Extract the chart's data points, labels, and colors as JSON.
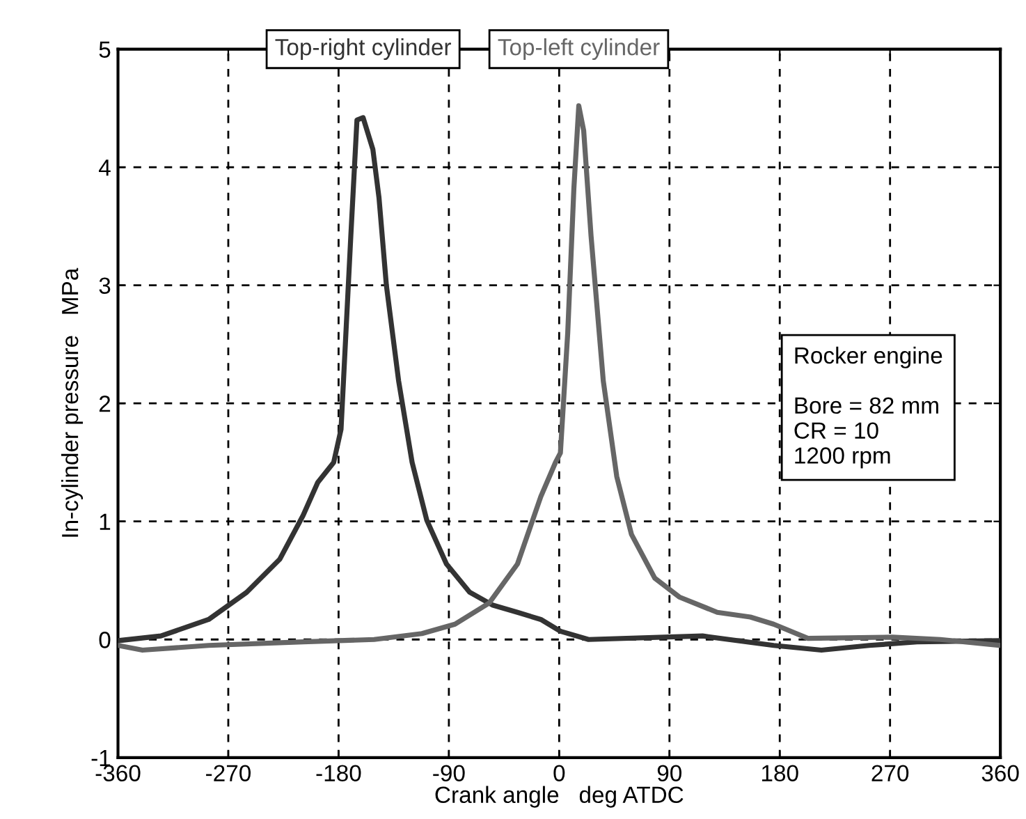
{
  "chart_data": {
    "type": "line",
    "xlabel": "Crank angle   deg ATDC",
    "ylabel": "In-cylinder pressure   MPa",
    "xlim": [
      -360,
      360
    ],
    "xticks": [
      -360,
      -270,
      -180,
      -90,
      0,
      90,
      180,
      270,
      360
    ],
    "ylim": [
      -1,
      5
    ],
    "yticks": [
      -1,
      0,
      1,
      2,
      3,
      4,
      5
    ],
    "grid": true,
    "legend": false,
    "line_style": "solid",
    "marker": "none",
    "annotations": [
      "Rocker engine\n\nBore = 82 mm\nCR = 10\n1200 rpm"
    ],
    "series": [
      {
        "name": "Top-right cylinder",
        "color": "#333333",
        "x": [
          -360,
          -325,
          -286,
          -255,
          -228,
          -209,
          -197,
          -184,
          -178,
          -174,
          -170,
          -165,
          -160,
          -152,
          -147,
          -141,
          -131,
          -120,
          -108,
          -92,
          -73,
          -54,
          -34,
          -15,
          1,
          24,
          117,
          175,
          214,
          253,
          292,
          360
        ],
        "values": [
          -0.01,
          0.03,
          0.17,
          0.4,
          0.68,
          1.05,
          1.33,
          1.5,
          1.78,
          2.6,
          3.42,
          4.4,
          4.42,
          4.15,
          3.74,
          3.0,
          2.19,
          1.5,
          1.01,
          0.64,
          0.4,
          0.29,
          0.23,
          0.17,
          0.07,
          0.0,
          0.03,
          -0.05,
          -0.09,
          -0.05,
          -0.02,
          -0.01
        ]
      },
      {
        "name": "Top-left cylinder",
        "color": "#666666",
        "x": [
          -360,
          -340,
          -286,
          -209,
          -151,
          -112,
          -85,
          -57,
          -34,
          -15,
          -3,
          1,
          7,
          12,
          16,
          20,
          26,
          36,
          47,
          59,
          78,
          98,
          129,
          156,
          175,
          203,
          272,
          311,
          360
        ],
        "values": [
          -0.05,
          -0.09,
          -0.05,
          -0.02,
          0.0,
          0.05,
          0.13,
          0.31,
          0.64,
          1.21,
          1.5,
          1.58,
          2.6,
          3.82,
          4.52,
          4.31,
          3.42,
          2.19,
          1.38,
          0.89,
          0.52,
          0.36,
          0.23,
          0.19,
          0.13,
          0.01,
          0.02,
          0.0,
          -0.05
        ]
      }
    ]
  }
}
